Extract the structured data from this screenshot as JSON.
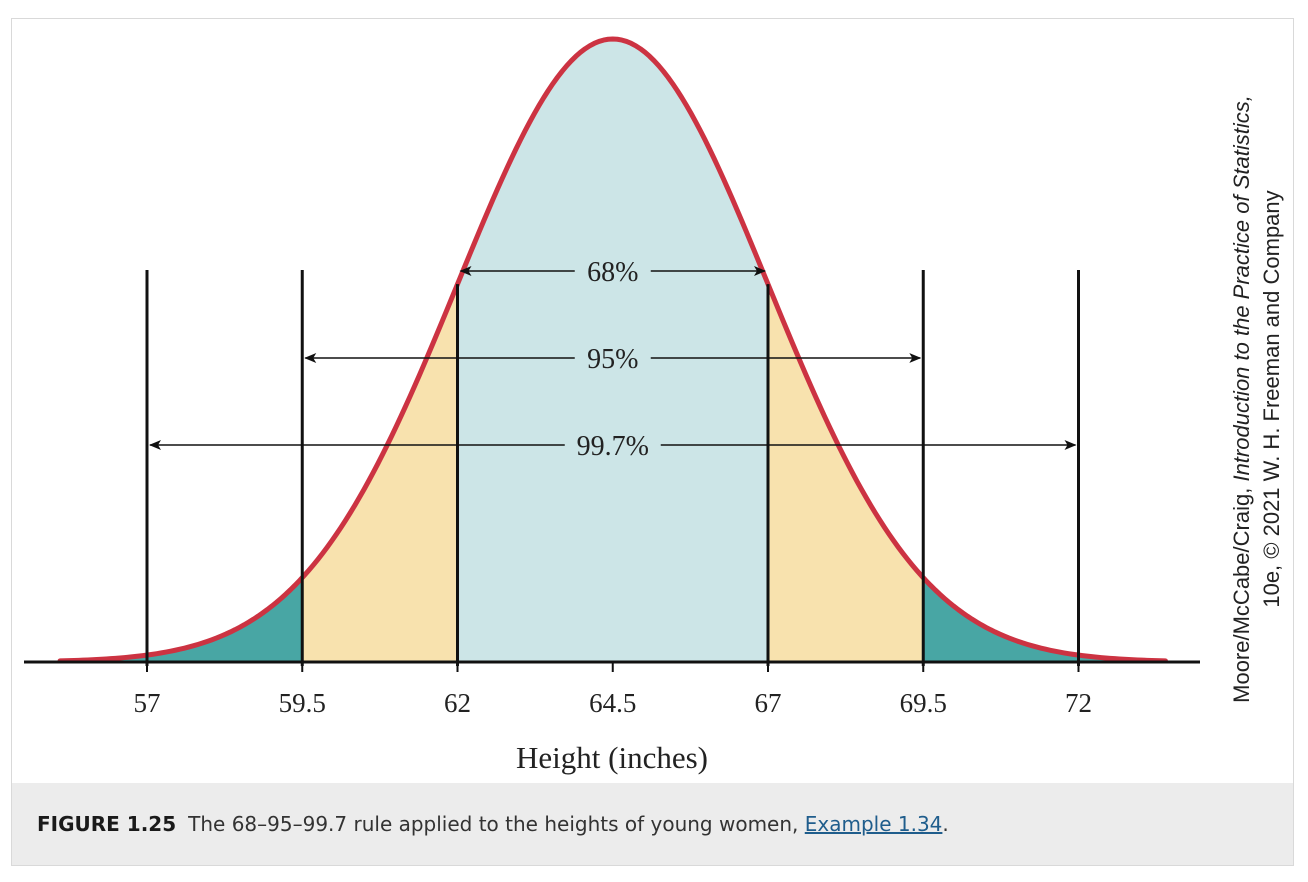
{
  "colors": {
    "curve": "#cc3342",
    "center_fill": "#cce5e7",
    "middle_fill": "#f8e2ae",
    "tail_fill": "#48a6a4",
    "lines": "#111111",
    "caption_bg": "#ececec",
    "link": "#1f5d8c"
  },
  "chart_data": {
    "type": "area",
    "distribution": "normal",
    "mean": 64.5,
    "sd": 2.5,
    "xlim": [
      55.6,
      73.4
    ],
    "xlabel": "Height (inches)",
    "ticks": [
      {
        "value": 57,
        "label": "57"
      },
      {
        "value": 59.5,
        "label": "59.5"
      },
      {
        "value": 62,
        "label": "62"
      },
      {
        "value": 64.5,
        "label": "64.5"
      },
      {
        "value": 67,
        "label": "67"
      },
      {
        "value": 69.5,
        "label": "69.5"
      },
      {
        "value": 72,
        "label": "72"
      }
    ],
    "regions": [
      {
        "name": "within 1 sd",
        "from": 62,
        "to": 67,
        "color": "#cce5e7"
      },
      {
        "name": "1 to 2 sd",
        "from": 59.5,
        "to": 62,
        "color": "#f8e2ae"
      },
      {
        "name": "1 to 2 sd",
        "from": 67,
        "to": 69.5,
        "color": "#f8e2ae"
      },
      {
        "name": "beyond 2 sd",
        "from": 55.6,
        "to": 59.5,
        "color": "#48a6a4"
      },
      {
        "name": "beyond 2 sd",
        "from": 69.5,
        "to": 73.4,
        "color": "#48a6a4"
      }
    ],
    "vertical_lines": [
      57,
      59.5,
      62,
      67,
      69.5,
      72
    ],
    "intervals": [
      {
        "label": "68%",
        "from": 62,
        "to": 67
      },
      {
        "label": "95%",
        "from": 59.5,
        "to": 69.5
      },
      {
        "label": "99.7%",
        "from": 57,
        "to": 72
      }
    ]
  },
  "credit": {
    "line1_prefix": "Moore/McCabe/Craig, ",
    "line1_title": "Introduction to the Practice of Statistics,",
    "line2": "10e, © 2021 W. H. Freeman and Company"
  },
  "caption": {
    "label": "FIGURE 1.25",
    "text": "The 68–95–99.7 rule applied to the heights of young women, ",
    "link_text": "Example 1.34",
    "suffix": "."
  }
}
